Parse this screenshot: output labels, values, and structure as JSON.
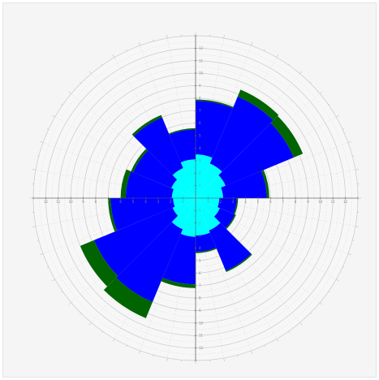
{
  "chart_data": {
    "type": "polar-stacked-bar",
    "title": "",
    "sectors": 16,
    "r_max": 13,
    "series": [
      {
        "color": "#00ffff",
        "values": [
          3.5,
          3.0,
          2.6,
          2.2,
          1.9,
          2.1,
          2.8,
          3.0,
          3.1,
          2.7,
          2.0,
          1.8,
          1.9,
          2.1,
          2.6,
          3.1
        ]
      },
      {
        "color": "#0000ff",
        "values": [
          4.3,
          5.8,
          5.9,
          3.5,
          1.4,
          1.3,
          3.5,
          1.3,
          3.8,
          6.3,
          6.8,
          5.0,
          3.7,
          3.3,
          4.4,
          2.4
        ]
      },
      {
        "color": "#006400",
        "values": [
          0.1,
          0.6,
          0.8,
          0.2,
          0.1,
          0.1,
          0.1,
          0.1,
          0.3,
          1.4,
          1.2,
          0.2,
          0.4,
          0.2,
          0.2,
          0.1
        ]
      }
    ],
    "grid": true,
    "legend": "none"
  }
}
